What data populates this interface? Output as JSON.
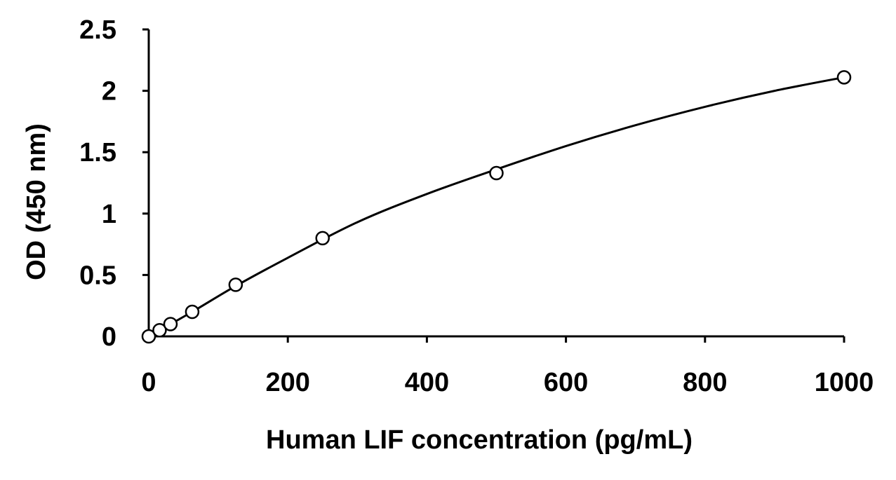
{
  "chart_data": {
    "type": "scatter",
    "title": "",
    "xlabel": "Human LIF concentration (pg/mL)",
    "ylabel": "OD (450 nm)",
    "xlim": [
      0,
      1000
    ],
    "ylim": [
      0,
      2.5
    ],
    "x_ticks": [
      "0",
      "200",
      "400",
      "600",
      "800",
      "1000"
    ],
    "y_ticks": [
      "0",
      "0.5",
      "1",
      "1.5",
      "2",
      "2.5"
    ],
    "grid": false,
    "legend": "none",
    "series": [
      {
        "marker": "open-circle",
        "points": [
          {
            "x": 0,
            "y": 0.0
          },
          {
            "x": 15.6,
            "y": 0.05
          },
          {
            "x": 31.25,
            "y": 0.1
          },
          {
            "x": 62.5,
            "y": 0.2
          },
          {
            "x": 125,
            "y": 0.42
          },
          {
            "x": 250,
            "y": 0.8
          },
          {
            "x": 500,
            "y": 1.33
          },
          {
            "x": 1000,
            "y": 2.11
          }
        ]
      }
    ],
    "fit_curve": {
      "type": "smooth",
      "points": [
        {
          "x": 0,
          "y": 0.0
        },
        {
          "x": 62.5,
          "y": 0.2
        },
        {
          "x": 125,
          "y": 0.41
        },
        {
          "x": 200,
          "y": 0.64
        },
        {
          "x": 300,
          "y": 0.93
        },
        {
          "x": 400,
          "y": 1.16
        },
        {
          "x": 500,
          "y": 1.36
        },
        {
          "x": 600,
          "y": 1.55
        },
        {
          "x": 700,
          "y": 1.72
        },
        {
          "x": 800,
          "y": 1.87
        },
        {
          "x": 900,
          "y": 2.0
        },
        {
          "x": 1000,
          "y": 2.11
        }
      ]
    }
  }
}
